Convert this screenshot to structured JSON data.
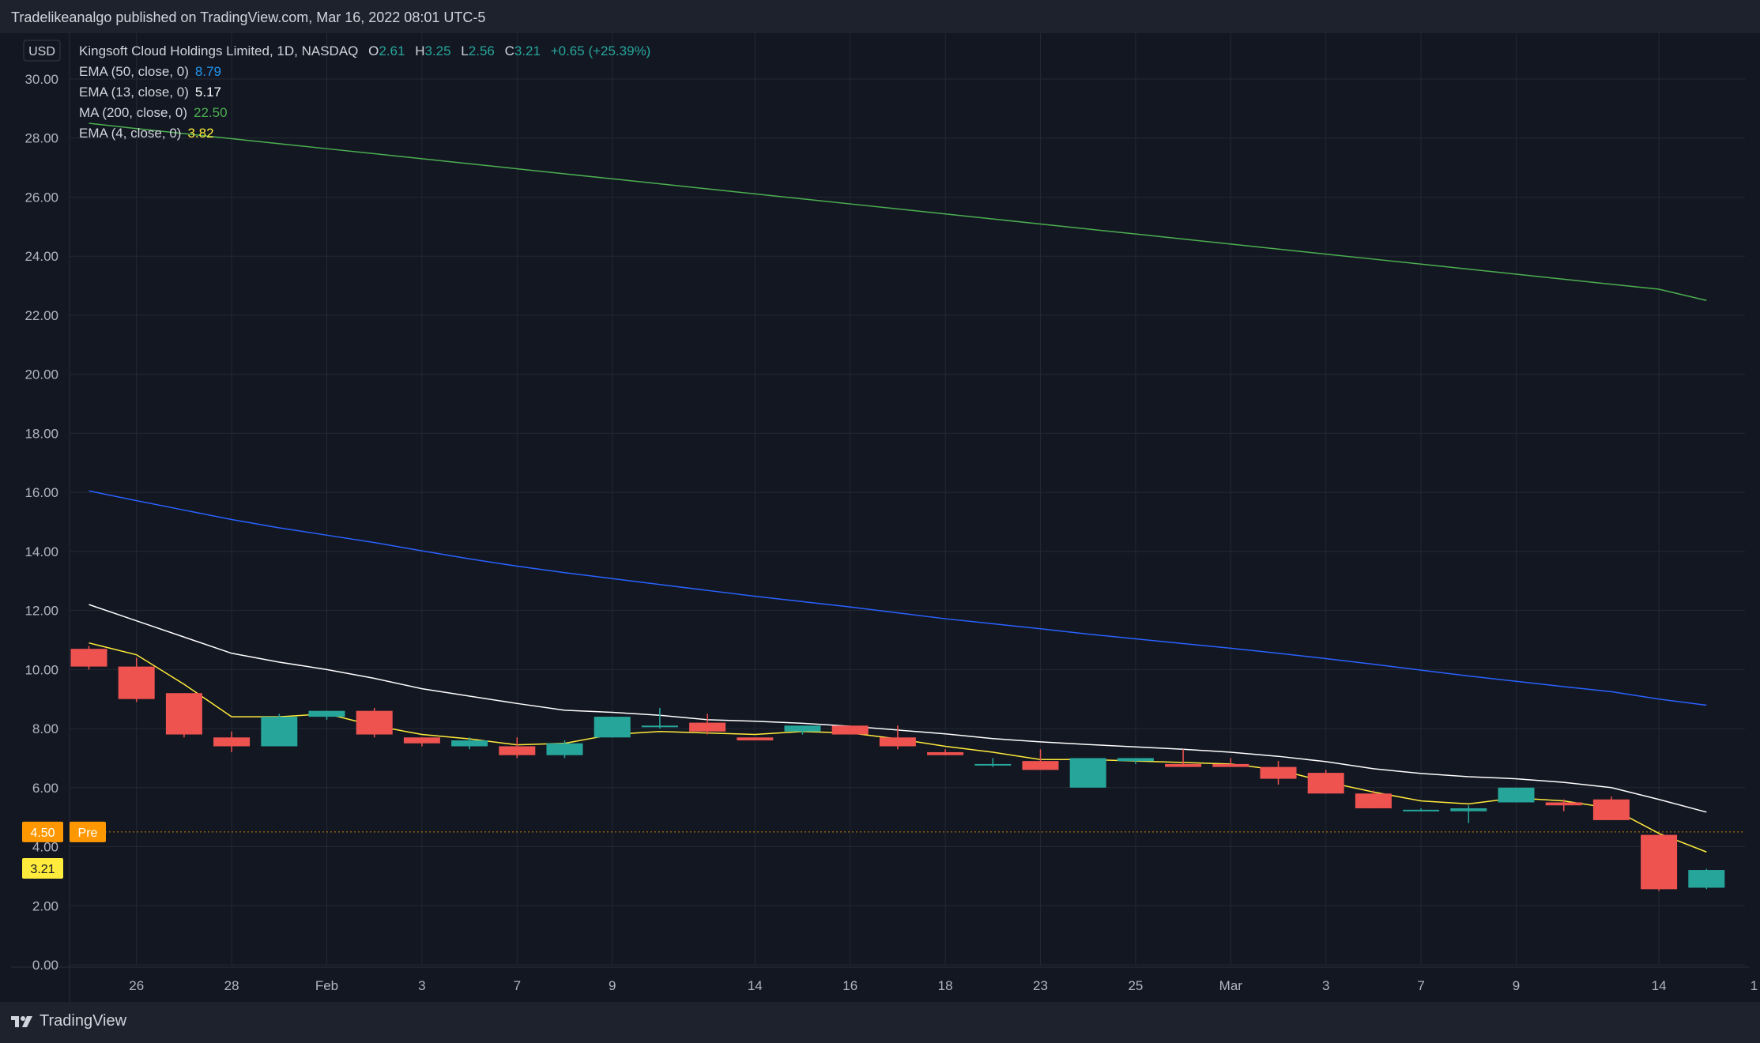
{
  "header": {
    "published_text": "Tradelikeanalgo published on TradingView.com, Mar 16, 2022 08:01 UTC-5"
  },
  "footer": {
    "brand_label": "TradingView"
  },
  "legend": {
    "symbol": "Kingsoft Cloud Holdings Limited, 1D, NASDAQ",
    "o_label": "O",
    "o_value": "2.61",
    "h_label": "H",
    "h_value": "3.25",
    "l_label": "L",
    "l_value": "2.56",
    "c_label": "C",
    "c_value": "3.21",
    "change": "+0.65 (+25.39%)",
    "indicators": [
      {
        "label": "EMA (50, close, 0)",
        "value": "8.79",
        "color": "#2962ff"
      },
      {
        "label": "EMA (13, close, 0)",
        "value": "5.17",
        "color": "#ffffff"
      },
      {
        "label": "MA (200, close, 0)",
        "value": "22.50",
        "color": "#4caf50"
      },
      {
        "label": "EMA (4, close, 0)",
        "value": "3.82",
        "color": "#ffeb3b"
      }
    ]
  },
  "chart_data": {
    "type": "candlestick",
    "currency": "USD",
    "ylim": [
      0,
      30
    ],
    "y_ticks": [
      "0.00",
      "2.00",
      "4.00",
      "6.00",
      "8.00",
      "10.00",
      "12.00",
      "14.00",
      "16.00",
      "18.00",
      "20.00",
      "22.00",
      "24.00",
      "26.00",
      "28.00",
      "30.00"
    ],
    "x_ticks": [
      {
        "label": "26",
        "index": 1
      },
      {
        "label": "28",
        "index": 3
      },
      {
        "label": "Feb",
        "index": 5
      },
      {
        "label": "3",
        "index": 7
      },
      {
        "label": "7",
        "index": 9
      },
      {
        "label": "9",
        "index": 11
      },
      {
        "label": "14",
        "index": 14
      },
      {
        "label": "16",
        "index": 16
      },
      {
        "label": "18",
        "index": 18
      },
      {
        "label": "23",
        "index": 20
      },
      {
        "label": "25",
        "index": 22
      },
      {
        "label": "Mar",
        "index": 24
      },
      {
        "label": "3",
        "index": 26
      },
      {
        "label": "7",
        "index": 28
      },
      {
        "label": "9",
        "index": 30
      },
      {
        "label": "14",
        "index": 33
      },
      {
        "label": "1",
        "index": 35
      }
    ],
    "candles": [
      {
        "o": 10.7,
        "h": 10.8,
        "l": 10.0,
        "c": 10.1
      },
      {
        "o": 10.1,
        "h": 10.4,
        "l": 8.9,
        "c": 9.0
      },
      {
        "o": 9.2,
        "h": 9.2,
        "l": 7.7,
        "c": 7.8
      },
      {
        "o": 7.7,
        "h": 7.9,
        "l": 7.2,
        "c": 7.4
      },
      {
        "o": 7.4,
        "h": 8.5,
        "l": 7.4,
        "c": 8.4
      },
      {
        "o": 8.4,
        "h": 8.6,
        "l": 8.3,
        "c": 8.6
      },
      {
        "o": 8.6,
        "h": 8.7,
        "l": 7.7,
        "c": 7.8
      },
      {
        "o": 7.7,
        "h": 7.7,
        "l": 7.4,
        "c": 7.5
      },
      {
        "o": 7.4,
        "h": 7.7,
        "l": 7.3,
        "c": 7.6
      },
      {
        "o": 7.4,
        "h": 7.7,
        "l": 7.0,
        "c": 7.1
      },
      {
        "o": 7.1,
        "h": 7.6,
        "l": 7.0,
        "c": 7.5
      },
      {
        "o": 7.7,
        "h": 8.4,
        "l": 7.7,
        "c": 8.4
      },
      {
        "o": 8.1,
        "h": 8.7,
        "l": 8.0,
        "c": 8.1
      },
      {
        "o": 8.2,
        "h": 8.5,
        "l": 7.8,
        "c": 7.9
      },
      {
        "o": 7.7,
        "h": 7.7,
        "l": 7.6,
        "c": 7.6
      },
      {
        "o": 7.9,
        "h": 8.1,
        "l": 7.8,
        "c": 8.1
      },
      {
        "o": 8.1,
        "h": 8.1,
        "l": 7.8,
        "c": 7.8
      },
      {
        "o": 7.7,
        "h": 8.1,
        "l": 7.3,
        "c": 7.4
      },
      {
        "o": 7.2,
        "h": 7.3,
        "l": 7.1,
        "c": 7.1
      },
      {
        "o": 6.8,
        "h": 7.0,
        "l": 6.7,
        "c": 6.8
      },
      {
        "o": 6.9,
        "h": 7.3,
        "l": 6.6,
        "c": 6.6
      },
      {
        "o": 6.0,
        "h": 7.0,
        "l": 6.0,
        "c": 7.0
      },
      {
        "o": 6.9,
        "h": 7.0,
        "l": 6.8,
        "c": 7.0
      },
      {
        "o": 6.8,
        "h": 7.3,
        "l": 6.7,
        "c": 6.7
      },
      {
        "o": 6.8,
        "h": 7.0,
        "l": 6.7,
        "c": 6.7
      },
      {
        "o": 6.7,
        "h": 6.9,
        "l": 6.1,
        "c": 6.3
      },
      {
        "o": 6.5,
        "h": 6.6,
        "l": 5.8,
        "c": 5.8
      },
      {
        "o": 5.8,
        "h": 5.9,
        "l": 5.3,
        "c": 5.3
      },
      {
        "o": 5.2,
        "h": 5.3,
        "l": 5.2,
        "c": 5.25
      },
      {
        "o": 5.2,
        "h": 5.4,
        "l": 4.8,
        "c": 5.3
      },
      {
        "o": 5.5,
        "h": 6.0,
        "l": 5.5,
        "c": 6.0
      },
      {
        "o": 5.5,
        "h": 5.6,
        "l": 5.2,
        "c": 5.4
      },
      {
        "o": 5.6,
        "h": 5.7,
        "l": 4.9,
        "c": 4.9
      },
      {
        "o": 4.4,
        "h": 4.4,
        "l": 2.5,
        "c": 2.56
      },
      {
        "o": 2.61,
        "h": 3.25,
        "l": 2.56,
        "c": 3.21
      }
    ],
    "series": [
      {
        "name": "MA (200, close, 0)",
        "color": "#4caf50",
        "values": [
          28.5,
          28.32,
          28.15,
          27.98,
          27.81,
          27.64,
          27.47,
          27.3,
          27.13,
          26.96,
          26.79,
          26.62,
          26.45,
          26.28,
          26.11,
          25.94,
          25.77,
          25.6,
          25.43,
          25.26,
          25.09,
          24.92,
          24.75,
          24.58,
          24.41,
          24.24,
          24.07,
          23.9,
          23.73,
          23.56,
          23.39,
          23.22,
          23.05,
          22.88,
          22.5
        ]
      },
      {
        "name": "EMA (50, close, 0)",
        "color": "#2962ff",
        "values": [
          16.05,
          15.72,
          15.4,
          15.08,
          14.8,
          14.55,
          14.3,
          14.02,
          13.75,
          13.5,
          13.28,
          13.08,
          12.88,
          12.68,
          12.48,
          12.3,
          12.12,
          11.92,
          11.72,
          11.55,
          11.38,
          11.2,
          11.04,
          10.88,
          10.72,
          10.55,
          10.37,
          10.18,
          9.98,
          9.78,
          9.6,
          9.42,
          9.25,
          9.0,
          8.79
        ]
      },
      {
        "name": "EMA (13, close, 0)",
        "color": "#ffffff",
        "values": [
          12.2,
          11.65,
          11.1,
          10.55,
          10.25,
          10.0,
          9.7,
          9.35,
          9.1,
          8.85,
          8.62,
          8.55,
          8.45,
          8.3,
          8.25,
          8.18,
          8.08,
          7.95,
          7.82,
          7.66,
          7.55,
          7.46,
          7.38,
          7.3,
          7.2,
          7.06,
          6.88,
          6.64,
          6.48,
          6.37,
          6.3,
          6.18,
          6.0,
          5.6,
          5.17
        ]
      },
      {
        "name": "EMA (4, close, 0)",
        "color": "#ffeb3b",
        "values": [
          10.9,
          10.5,
          9.5,
          8.4,
          8.4,
          8.5,
          8.1,
          7.8,
          7.65,
          7.45,
          7.5,
          7.8,
          7.9,
          7.85,
          7.8,
          7.9,
          7.85,
          7.65,
          7.4,
          7.2,
          6.95,
          6.95,
          6.9,
          6.85,
          6.8,
          6.6,
          6.2,
          5.85,
          5.55,
          5.45,
          5.65,
          5.55,
          5.3,
          4.45,
          3.82
        ]
      }
    ],
    "price_labels": [
      {
        "value": "4.50",
        "tag": "Pre",
        "level": 4.5,
        "color": "#ff9800"
      },
      {
        "value": "3.21",
        "level": 3.21,
        "color": "#ffeb3b"
      }
    ],
    "up_color": "#26a69a",
    "down_color": "#ef5350"
  }
}
